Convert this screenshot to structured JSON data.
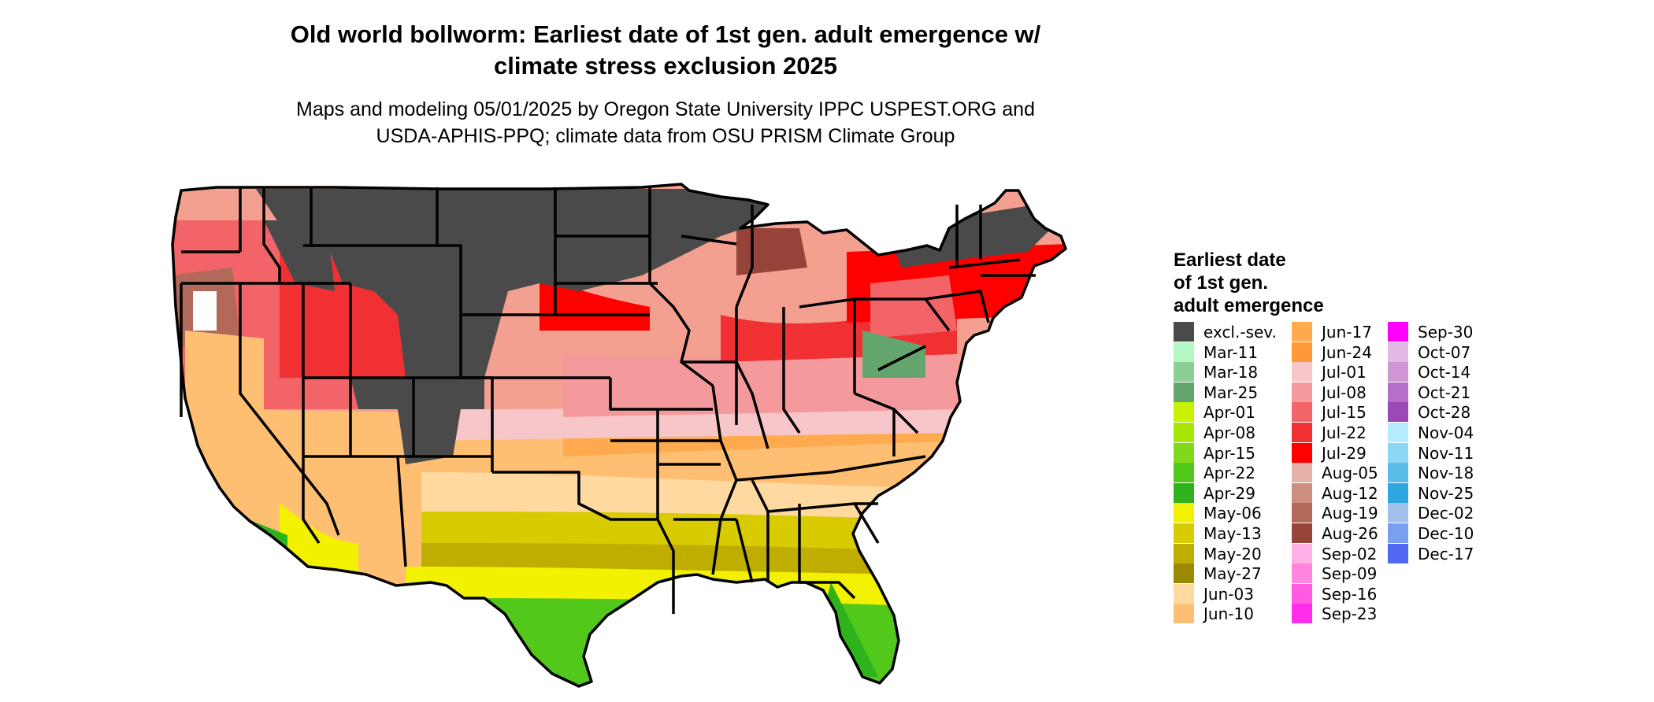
{
  "title_line1": "Old world bollworm: Earliest date of 1st gen. adult emergence w/",
  "title_line2": "climate stress exclusion 2025",
  "subtitle_line1": "Maps and modeling 05/01/2025 by Oregon State University IPPC USPEST.ORG and",
  "subtitle_line2": "USDA-APHIS-PPQ; climate data from OSU PRISM Climate Group",
  "legend": {
    "title_line1": "Earliest date",
    "title_line2": "of 1st gen.",
    "title_line3": "adult emergence",
    "columns": [
      [
        {
          "label": "excl.-sev.",
          "color": "#4a4a4a"
        },
        {
          "label": "Mar-11",
          "color": "#b3f7c4"
        },
        {
          "label": "Mar-18",
          "color": "#8ccf96"
        },
        {
          "label": "Mar-25",
          "color": "#63a56c"
        },
        {
          "label": "Apr-01",
          "color": "#c8f200"
        },
        {
          "label": "Apr-08",
          "color": "#a8e800"
        },
        {
          "label": "Apr-15",
          "color": "#7fd81a"
        },
        {
          "label": "Apr-22",
          "color": "#52c81a"
        },
        {
          "label": "Apr-29",
          "color": "#2fb31c"
        },
        {
          "label": "May-06",
          "color": "#f2f200"
        },
        {
          "label": "May-13",
          "color": "#d8cc00"
        },
        {
          "label": "May-20",
          "color": "#bfae00"
        },
        {
          "label": "May-27",
          "color": "#9b8a00"
        },
        {
          "label": "Jun-03",
          "color": "#ffd9a0"
        },
        {
          "label": "Jun-10",
          "color": "#ffbf72"
        }
      ],
      [
        {
          "label": "Jun-17",
          "color": "#ffaa4e"
        },
        {
          "label": "Jun-24",
          "color": "#ff9836"
        },
        {
          "label": "Jul-01",
          "color": "#f7c6c8"
        },
        {
          "label": "Jul-08",
          "color": "#f49a9c"
        },
        {
          "label": "Jul-15",
          "color": "#f26467"
        },
        {
          "label": "Jul-22",
          "color": "#f03033"
        },
        {
          "label": "Jul-29",
          "color": "#ff0000"
        },
        {
          "label": "Aug-05",
          "color": "#e4b2a6"
        },
        {
          "label": "Aug-12",
          "color": "#cc8e7e"
        },
        {
          "label": "Aug-19",
          "color": "#b3695a"
        },
        {
          "label": "Aug-26",
          "color": "#96443a"
        },
        {
          "label": "Sep-02",
          "color": "#ffb0e4"
        },
        {
          "label": "Sep-09",
          "color": "#ff86dc"
        },
        {
          "label": "Sep-16",
          "color": "#ff5ae0"
        },
        {
          "label": "Sep-23",
          "color": "#ff2ee8"
        }
      ],
      [
        {
          "label": "Sep-30",
          "color": "#ff00ff"
        },
        {
          "label": "Oct-07",
          "color": "#e4b8e4"
        },
        {
          "label": "Oct-14",
          "color": "#cf96d4"
        },
        {
          "label": "Oct-21",
          "color": "#b56fc8"
        },
        {
          "label": "Oct-28",
          "color": "#9a49b6"
        },
        {
          "label": "Nov-04",
          "color": "#b6ecff"
        },
        {
          "label": "Nov-11",
          "color": "#8ad6f4"
        },
        {
          "label": "Nov-18",
          "color": "#5bbdea"
        },
        {
          "label": "Nov-25",
          "color": "#2ea6de"
        },
        {
          "label": "Dec-02",
          "color": "#a0c0ea"
        },
        {
          "label": "Dec-10",
          "color": "#7a9ef0"
        },
        {
          "label": "Dec-17",
          "color": "#5068f2"
        }
      ]
    ]
  },
  "map_colors": {
    "excluded": "#4a4a4a",
    "border": "#000000"
  }
}
